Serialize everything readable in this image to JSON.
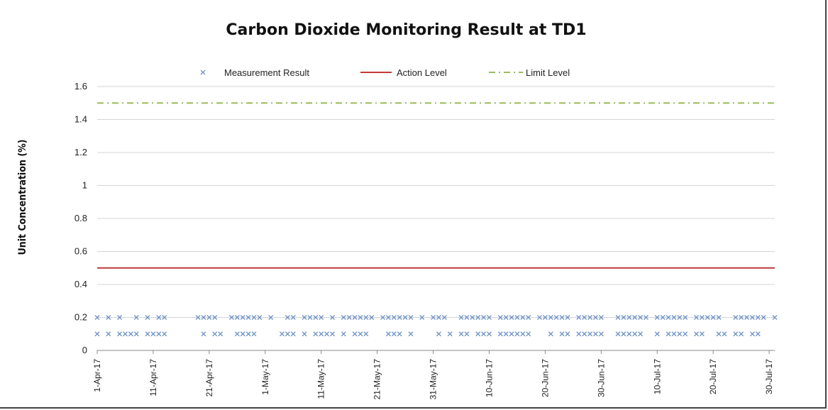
{
  "chart_data": {
    "type": "scatter",
    "title": "Carbon Dioxide Monitoring Result at TD1",
    "ylabel": "Unit Concentration (%)",
    "xlabel": "",
    "ylim": [
      0,
      1.6
    ],
    "yticks": [
      "0",
      "0.2",
      "0.4",
      "0.6",
      "0.8",
      "1",
      "1.2",
      "1.4",
      "1.6"
    ],
    "xlim": [
      "1-Apr-17",
      "31-Jul-17"
    ],
    "xticks": [
      "1-Apr-17",
      "11-Apr-17",
      "21-Apr-17",
      "1-May-17",
      "11-May-17",
      "21-May-17",
      "31-May-17",
      "10-Jun-17",
      "20-Jun-17",
      "30-Jun-17",
      "10-Jul-17",
      "20-Jul-17",
      "30-Jul-17"
    ],
    "grid": true,
    "legend_position": "top",
    "series": [
      {
        "name": "Measurement Result",
        "marker": "x",
        "color": "#6f93c8",
        "points": [
          {
            "date": "1-Apr-17",
            "value": 0.2
          },
          {
            "date": "1-Apr-17",
            "value": 0.1
          },
          {
            "date": "3-Apr-17",
            "value": 0.2
          },
          {
            "date": "3-Apr-17",
            "value": 0.1
          },
          {
            "date": "5-Apr-17",
            "value": 0.2
          },
          {
            "date": "5-Apr-17",
            "value": 0.1
          },
          {
            "date": "6-Apr-17",
            "value": 0.1
          },
          {
            "date": "7-Apr-17",
            "value": 0.1
          },
          {
            "date": "8-Apr-17",
            "value": 0.2
          },
          {
            "date": "8-Apr-17",
            "value": 0.1
          },
          {
            "date": "10-Apr-17",
            "value": 0.2
          },
          {
            "date": "10-Apr-17",
            "value": 0.1
          },
          {
            "date": "11-Apr-17",
            "value": 0.1
          },
          {
            "date": "12-Apr-17",
            "value": 0.2
          },
          {
            "date": "12-Apr-17",
            "value": 0.1
          },
          {
            "date": "13-Apr-17",
            "value": 0.2
          },
          {
            "date": "13-Apr-17",
            "value": 0.1
          },
          {
            "date": "19-Apr-17",
            "value": 0.2
          },
          {
            "date": "20-Apr-17",
            "value": 0.2
          },
          {
            "date": "20-Apr-17",
            "value": 0.1
          },
          {
            "date": "21-Apr-17",
            "value": 0.2
          },
          {
            "date": "22-Apr-17",
            "value": 0.2
          },
          {
            "date": "22-Apr-17",
            "value": 0.1
          },
          {
            "date": "23-Apr-17",
            "value": 0.1
          },
          {
            "date": "25-Apr-17",
            "value": 0.2
          },
          {
            "date": "26-Apr-17",
            "value": 0.2
          },
          {
            "date": "26-Apr-17",
            "value": 0.1
          },
          {
            "date": "27-Apr-17",
            "value": 0.2
          },
          {
            "date": "27-Apr-17",
            "value": 0.1
          },
          {
            "date": "28-Apr-17",
            "value": 0.2
          },
          {
            "date": "28-Apr-17",
            "value": 0.1
          },
          {
            "date": "29-Apr-17",
            "value": 0.2
          },
          {
            "date": "29-Apr-17",
            "value": 0.1
          },
          {
            "date": "30-Apr-17",
            "value": 0.2
          },
          {
            "date": "2-May-17",
            "value": 0.2
          },
          {
            "date": "4-May-17",
            "value": 0.1
          },
          {
            "date": "5-May-17",
            "value": 0.2
          },
          {
            "date": "5-May-17",
            "value": 0.1
          },
          {
            "date": "6-May-17",
            "value": 0.2
          },
          {
            "date": "6-May-17",
            "value": 0.1
          },
          {
            "date": "8-May-17",
            "value": 0.2
          },
          {
            "date": "8-May-17",
            "value": 0.1
          },
          {
            "date": "9-May-17",
            "value": 0.2
          },
          {
            "date": "10-May-17",
            "value": 0.2
          },
          {
            "date": "10-May-17",
            "value": 0.1
          },
          {
            "date": "11-May-17",
            "value": 0.2
          },
          {
            "date": "11-May-17",
            "value": 0.1
          },
          {
            "date": "12-May-17",
            "value": 0.1
          },
          {
            "date": "13-May-17",
            "value": 0.2
          },
          {
            "date": "13-May-17",
            "value": 0.1
          },
          {
            "date": "15-May-17",
            "value": 0.2
          },
          {
            "date": "15-May-17",
            "value": 0.1
          },
          {
            "date": "16-May-17",
            "value": 0.2
          },
          {
            "date": "17-May-17",
            "value": 0.2
          },
          {
            "date": "17-May-17",
            "value": 0.1
          },
          {
            "date": "18-May-17",
            "value": 0.2
          },
          {
            "date": "18-May-17",
            "value": 0.1
          },
          {
            "date": "19-May-17",
            "value": 0.2
          },
          {
            "date": "19-May-17",
            "value": 0.1
          },
          {
            "date": "20-May-17",
            "value": 0.2
          },
          {
            "date": "22-May-17",
            "value": 0.2
          },
          {
            "date": "23-May-17",
            "value": 0.2
          },
          {
            "date": "23-May-17",
            "value": 0.1
          },
          {
            "date": "24-May-17",
            "value": 0.2
          },
          {
            "date": "24-May-17",
            "value": 0.1
          },
          {
            "date": "25-May-17",
            "value": 0.2
          },
          {
            "date": "25-May-17",
            "value": 0.1
          },
          {
            "date": "26-May-17",
            "value": 0.2
          },
          {
            "date": "27-May-17",
            "value": 0.2
          },
          {
            "date": "27-May-17",
            "value": 0.1
          },
          {
            "date": "29-May-17",
            "value": 0.2
          },
          {
            "date": "31-May-17",
            "value": 0.2
          },
          {
            "date": "1-Jun-17",
            "value": 0.2
          },
          {
            "date": "1-Jun-17",
            "value": 0.1
          },
          {
            "date": "2-Jun-17",
            "value": 0.2
          },
          {
            "date": "3-Jun-17",
            "value": 0.1
          },
          {
            "date": "5-Jun-17",
            "value": 0.2
          },
          {
            "date": "5-Jun-17",
            "value": 0.1
          },
          {
            "date": "6-Jun-17",
            "value": 0.2
          },
          {
            "date": "6-Jun-17",
            "value": 0.1
          },
          {
            "date": "7-Jun-17",
            "value": 0.2
          },
          {
            "date": "8-Jun-17",
            "value": 0.2
          },
          {
            "date": "8-Jun-17",
            "value": 0.1
          },
          {
            "date": "9-Jun-17",
            "value": 0.2
          },
          {
            "date": "9-Jun-17",
            "value": 0.1
          },
          {
            "date": "10-Jun-17",
            "value": 0.2
          },
          {
            "date": "10-Jun-17",
            "value": 0.1
          },
          {
            "date": "12-Jun-17",
            "value": 0.2
          },
          {
            "date": "12-Jun-17",
            "value": 0.1
          },
          {
            "date": "13-Jun-17",
            "value": 0.2
          },
          {
            "date": "13-Jun-17",
            "value": 0.1
          },
          {
            "date": "14-Jun-17",
            "value": 0.2
          },
          {
            "date": "14-Jun-17",
            "value": 0.1
          },
          {
            "date": "15-Jun-17",
            "value": 0.2
          },
          {
            "date": "15-Jun-17",
            "value": 0.1
          },
          {
            "date": "16-Jun-17",
            "value": 0.2
          },
          {
            "date": "16-Jun-17",
            "value": 0.1
          },
          {
            "date": "17-Jun-17",
            "value": 0.2
          },
          {
            "date": "17-Jun-17",
            "value": 0.1
          },
          {
            "date": "19-Jun-17",
            "value": 0.2
          },
          {
            "date": "20-Jun-17",
            "value": 0.2
          },
          {
            "date": "21-Jun-17",
            "value": 0.2
          },
          {
            "date": "21-Jun-17",
            "value": 0.1
          },
          {
            "date": "22-Jun-17",
            "value": 0.2
          },
          {
            "date": "23-Jun-17",
            "value": 0.2
          },
          {
            "date": "23-Jun-17",
            "value": 0.1
          },
          {
            "date": "24-Jun-17",
            "value": 0.2
          },
          {
            "date": "24-Jun-17",
            "value": 0.1
          },
          {
            "date": "26-Jun-17",
            "value": 0.2
          },
          {
            "date": "26-Jun-17",
            "value": 0.1
          },
          {
            "date": "27-Jun-17",
            "value": 0.2
          },
          {
            "date": "27-Jun-17",
            "value": 0.1
          },
          {
            "date": "28-Jun-17",
            "value": 0.2
          },
          {
            "date": "28-Jun-17",
            "value": 0.1
          },
          {
            "date": "29-Jun-17",
            "value": 0.2
          },
          {
            "date": "29-Jun-17",
            "value": 0.1
          },
          {
            "date": "30-Jun-17",
            "value": 0.2
          },
          {
            "date": "30-Jun-17",
            "value": 0.1
          },
          {
            "date": "3-Jul-17",
            "value": 0.2
          },
          {
            "date": "3-Jul-17",
            "value": 0.1
          },
          {
            "date": "4-Jul-17",
            "value": 0.2
          },
          {
            "date": "4-Jul-17",
            "value": 0.1
          },
          {
            "date": "5-Jul-17",
            "value": 0.2
          },
          {
            "date": "5-Jul-17",
            "value": 0.1
          },
          {
            "date": "6-Jul-17",
            "value": 0.2
          },
          {
            "date": "6-Jul-17",
            "value": 0.1
          },
          {
            "date": "7-Jul-17",
            "value": 0.2
          },
          {
            "date": "7-Jul-17",
            "value": 0.1
          },
          {
            "date": "8-Jul-17",
            "value": 0.2
          },
          {
            "date": "10-Jul-17",
            "value": 0.2
          },
          {
            "date": "10-Jul-17",
            "value": 0.1
          },
          {
            "date": "11-Jul-17",
            "value": 0.2
          },
          {
            "date": "12-Jul-17",
            "value": 0.2
          },
          {
            "date": "12-Jul-17",
            "value": 0.1
          },
          {
            "date": "13-Jul-17",
            "value": 0.2
          },
          {
            "date": "13-Jul-17",
            "value": 0.1
          },
          {
            "date": "14-Jul-17",
            "value": 0.2
          },
          {
            "date": "14-Jul-17",
            "value": 0.1
          },
          {
            "date": "15-Jul-17",
            "value": 0.2
          },
          {
            "date": "15-Jul-17",
            "value": 0.1
          },
          {
            "date": "17-Jul-17",
            "value": 0.2
          },
          {
            "date": "17-Jul-17",
            "value": 0.1
          },
          {
            "date": "18-Jul-17",
            "value": 0.2
          },
          {
            "date": "18-Jul-17",
            "value": 0.1
          },
          {
            "date": "19-Jul-17",
            "value": 0.2
          },
          {
            "date": "20-Jul-17",
            "value": 0.2
          },
          {
            "date": "21-Jul-17",
            "value": 0.2
          },
          {
            "date": "21-Jul-17",
            "value": 0.1
          },
          {
            "date": "22-Jul-17",
            "value": 0.1
          },
          {
            "date": "24-Jul-17",
            "value": 0.2
          },
          {
            "date": "24-Jul-17",
            "value": 0.1
          },
          {
            "date": "25-Jul-17",
            "value": 0.2
          },
          {
            "date": "25-Jul-17",
            "value": 0.1
          },
          {
            "date": "26-Jul-17",
            "value": 0.2
          },
          {
            "date": "27-Jul-17",
            "value": 0.2
          },
          {
            "date": "27-Jul-17",
            "value": 0.1
          },
          {
            "date": "28-Jul-17",
            "value": 0.2
          },
          {
            "date": "28-Jul-17",
            "value": 0.1
          },
          {
            "date": "29-Jul-17",
            "value": 0.2
          },
          {
            "date": "31-Jul-17",
            "value": 0.2
          }
        ]
      },
      {
        "name": "Action Level",
        "type": "line",
        "style": "solid",
        "color": "#c0393b",
        "value": 0.5
      },
      {
        "name": "Limit Level",
        "type": "line",
        "style": "dash-dot",
        "color": "#9bbb59",
        "value": 1.5
      }
    ]
  }
}
